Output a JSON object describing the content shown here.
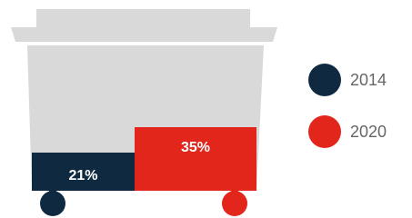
{
  "chart_data": {
    "type": "bar",
    "ylim": [
      0,
      100
    ],
    "legend": "right",
    "series": [
      {
        "name": "2014",
        "color": "#0f2a40",
        "values": [
          21
        ],
        "value_labels": [
          "21%"
        ]
      },
      {
        "name": "2020",
        "color": "#e2261c",
        "values": [
          35
        ],
        "value_labels": [
          "35%"
        ]
      }
    ]
  }
}
